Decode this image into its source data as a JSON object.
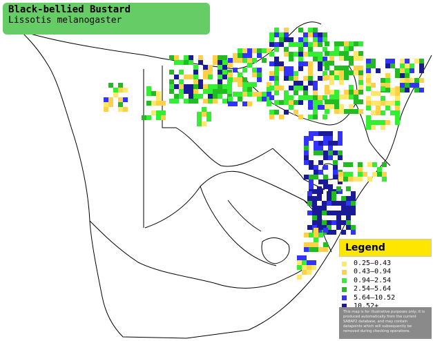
{
  "title": {
    "common_name": "Black-bellied Bustard",
    "scientific_name": "Lissotis melanogaster"
  },
  "legend": {
    "heading": "Legend",
    "items": [
      {
        "label": "0.25–0.43",
        "color": "#ffe86a"
      },
      {
        "label": "0.43–0.94",
        "color": "#ffd04a"
      },
      {
        "label": "0.94–2.54",
        "color": "#33ee33"
      },
      {
        "label": "2.54–5.64",
        "color": "#22bb22"
      },
      {
        "label": "5.64–10.52",
        "color": "#3333ff"
      },
      {
        "label": "10.52+",
        "color": "#1a1a99"
      }
    ],
    "disclaimer": "This map is for illustrative purposes only; it is produced automatically from the current SABAP2 database, and may contain datapoints which will subsequently be removed during checking operations."
  },
  "colors": {
    "title_background": "#66cc66",
    "legend_header": "#ffe600",
    "disclaimer_background": "#8a8a8a"
  }
}
